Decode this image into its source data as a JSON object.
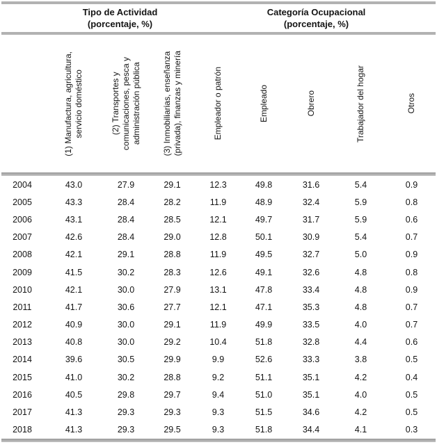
{
  "page": {
    "colors": {
      "text": "#141414",
      "rule_gray": "#b2b2b2",
      "rule_dark_gray": "#9a9a9a",
      "background": "#ffffff"
    }
  },
  "table": {
    "group_headers": [
      {
        "title": "Tipo de Actividad",
        "subtitle": "(porcentaje, %)",
        "span_columns": 3
      },
      {
        "title": "Categoría Ocupacional",
        "subtitle": "(porcentaje, %)",
        "span_columns": 5
      }
    ],
    "columns": [
      {
        "key": "year",
        "label": ""
      },
      {
        "key": "manufactura",
        "group": "Tipo de Actividad",
        "label": "(1) Manufactura, agricultura,\nservicio doméstico"
      },
      {
        "key": "transportes",
        "group": "Tipo de Actividad",
        "label": "(2) Transportes y\ncomunicaciones, pesca y\nadministración pública"
      },
      {
        "key": "inmobiliarias",
        "group": "Tipo de Actividad",
        "label": "(3) Inmobiliarias, enseñanza\n(privada), finanzas y minería"
      },
      {
        "key": "empleador_o_patron",
        "group": "Categoría Ocupacional",
        "label": "Empleador o patrón"
      },
      {
        "key": "empleado",
        "group": "Categoría Ocupacional",
        "label": "Empleado"
      },
      {
        "key": "obrero",
        "group": "Categoría Ocupacional",
        "label": "Obrero"
      },
      {
        "key": "trabajador_del_hogar",
        "group": "Categoría Ocupacional",
        "label": "Trabajador del hogar"
      },
      {
        "key": "otros",
        "group": "Categoría Ocupacional",
        "label": "Otros"
      }
    ],
    "rows": [
      {
        "year": "2004",
        "values": [
          "43.0",
          "27.9",
          "29.1",
          "12.3",
          "49.8",
          "31.6",
          "5.4",
          "0.9"
        ]
      },
      {
        "year": "2005",
        "values": [
          "43.3",
          "28.4",
          "28.2",
          "11.9",
          "48.9",
          "32.4",
          "5.9",
          "0.8"
        ]
      },
      {
        "year": "2006",
        "values": [
          "43.1",
          "28.4",
          "28.5",
          "12.1",
          "49.7",
          "31.7",
          "5.9",
          "0.6"
        ]
      },
      {
        "year": "2007",
        "values": [
          "42.6",
          "28.4",
          "29.0",
          "12.8",
          "50.1",
          "30.9",
          "5.4",
          "0.7"
        ]
      },
      {
        "year": "2008",
        "values": [
          "42.1",
          "29.1",
          "28.8",
          "11.9",
          "49.5",
          "32.7",
          "5.0",
          "0.9"
        ]
      },
      {
        "year": "2009",
        "values": [
          "41.5",
          "30.2",
          "28.3",
          "12.6",
          "49.1",
          "32.6",
          "4.8",
          "0.8"
        ]
      },
      {
        "year": "2010",
        "values": [
          "42.1",
          "30.0",
          "27.9",
          "13.1",
          "47.8",
          "33.4",
          "4.8",
          "0.9"
        ]
      },
      {
        "year": "2011",
        "values": [
          "41.7",
          "30.6",
          "27.7",
          "12.1",
          "47.1",
          "35.3",
          "4.8",
          "0.7"
        ]
      },
      {
        "year": "2012",
        "values": [
          "40.9",
          "30.0",
          "29.1",
          "11.9",
          "49.9",
          "33.5",
          "4.0",
          "0.7"
        ]
      },
      {
        "year": "2013",
        "values": [
          "40.8",
          "30.0",
          "29.2",
          "10.4",
          "51.8",
          "32.8",
          "4.4",
          "0.6"
        ]
      },
      {
        "year": "2014",
        "values": [
          "39.6",
          "30.5",
          "29.9",
          "9.9",
          "52.6",
          "33.3",
          "3.8",
          "0.5"
        ]
      },
      {
        "year": "2015",
        "values": [
          "41.0",
          "30.2",
          "28.8",
          "9.2",
          "51.1",
          "35.1",
          "4.2",
          "0.4"
        ]
      },
      {
        "year": "2016",
        "values": [
          "40.5",
          "29.8",
          "29.7",
          "9.4",
          "51.0",
          "35.1",
          "4.0",
          "0.5"
        ]
      },
      {
        "year": "2017",
        "values": [
          "41.3",
          "29.3",
          "29.3",
          "9.3",
          "51.5",
          "34.6",
          "4.2",
          "0.5"
        ]
      },
      {
        "year": "2018",
        "values": [
          "41.3",
          "29.3",
          "29.5",
          "9.3",
          "51.8",
          "34.4",
          "4.1",
          "0.3"
        ]
      }
    ]
  }
}
